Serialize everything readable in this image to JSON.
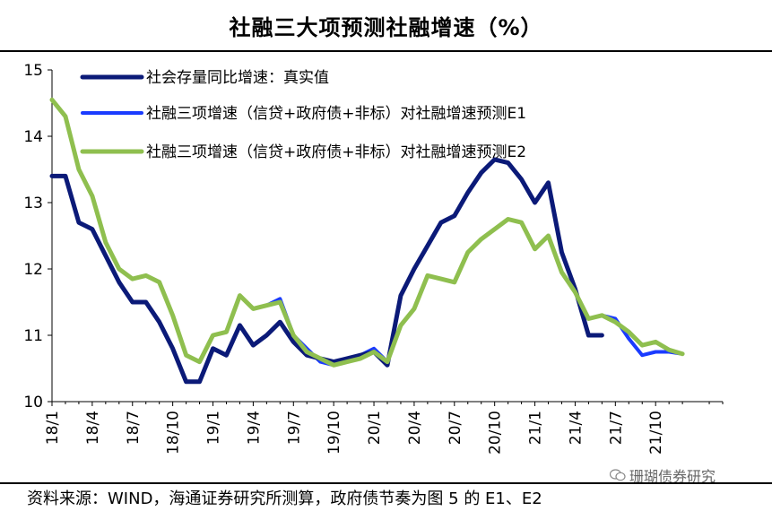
{
  "chart_data": {
    "type": "line",
    "title": "社融三大项预测社融增速（%）",
    "ylim": [
      10,
      15
    ],
    "yticks": [
      "10",
      "11",
      "12",
      "13",
      "14",
      "15"
    ],
    "x_tick_labels": [
      "18/1",
      "18/4",
      "18/7",
      "18/10",
      "19/1",
      "19/4",
      "19/7",
      "19/10",
      "20/1",
      "20/4",
      "20/7",
      "20/10",
      "21/1",
      "21/4",
      "21/7",
      "21/10"
    ],
    "x_range": [
      0,
      50
    ],
    "legend_position": "top-left",
    "series": [
      {
        "name": "社会存量同比增速：真实值",
        "color": "#0b1a78",
        "width": 5,
        "values": [
          13.4,
          13.4,
          12.7,
          12.6,
          12.2,
          11.8,
          11.5,
          11.5,
          11.2,
          10.8,
          10.3,
          10.3,
          10.8,
          10.7,
          11.15,
          10.85,
          11.0,
          11.2,
          10.9,
          10.7,
          10.65,
          10.6,
          10.65,
          10.7,
          10.75,
          10.55,
          11.6,
          12.0,
          12.35,
          12.7,
          12.8,
          13.15,
          13.45,
          13.65,
          13.6,
          13.35,
          13.0,
          13.3,
          12.25,
          11.7,
          11.0,
          11.0
        ]
      },
      {
        "name": "社融三项增速（信贷+政府债+非标）对社融增速预测E1",
        "color": "#1a3bff",
        "width": 4,
        "values": [
          14.55,
          14.3,
          13.5,
          13.1,
          12.4,
          12.0,
          11.85,
          11.9,
          11.8,
          11.3,
          10.7,
          10.6,
          11.0,
          11.05,
          11.6,
          11.4,
          11.45,
          11.55,
          11.0,
          10.8,
          10.6,
          10.55,
          10.65,
          10.7,
          10.8,
          10.6,
          11.15,
          11.4,
          11.9,
          11.85,
          11.8,
          12.25,
          12.45,
          12.6,
          12.75,
          12.7,
          12.3,
          12.5,
          11.95,
          11.65,
          11.25,
          11.3,
          11.25,
          10.95,
          10.7,
          10.75,
          10.75,
          10.72
        ]
      },
      {
        "name": "社融三项增速（信贷+政府债+非标）对社融增速预测E2",
        "color": "#8fbf4f",
        "width": 5,
        "values": [
          14.55,
          14.3,
          13.5,
          13.1,
          12.4,
          12.0,
          11.85,
          11.9,
          11.8,
          11.3,
          10.7,
          10.6,
          11.0,
          11.05,
          11.6,
          11.4,
          11.45,
          11.5,
          11.0,
          10.75,
          10.65,
          10.55,
          10.6,
          10.65,
          10.75,
          10.6,
          11.15,
          11.4,
          11.9,
          11.85,
          11.8,
          12.25,
          12.45,
          12.6,
          12.75,
          12.7,
          12.3,
          12.5,
          11.95,
          11.65,
          11.25,
          11.3,
          11.2,
          11.05,
          10.85,
          10.9,
          10.78,
          10.72
        ]
      }
    ]
  },
  "footer": {
    "source": "资料来源：WIND，海通证券研究所测算，政府债节奏为图 5 的 E1、E2"
  },
  "watermark": {
    "text": "珊瑚债券研究",
    "icon": "wechat-icon"
  }
}
